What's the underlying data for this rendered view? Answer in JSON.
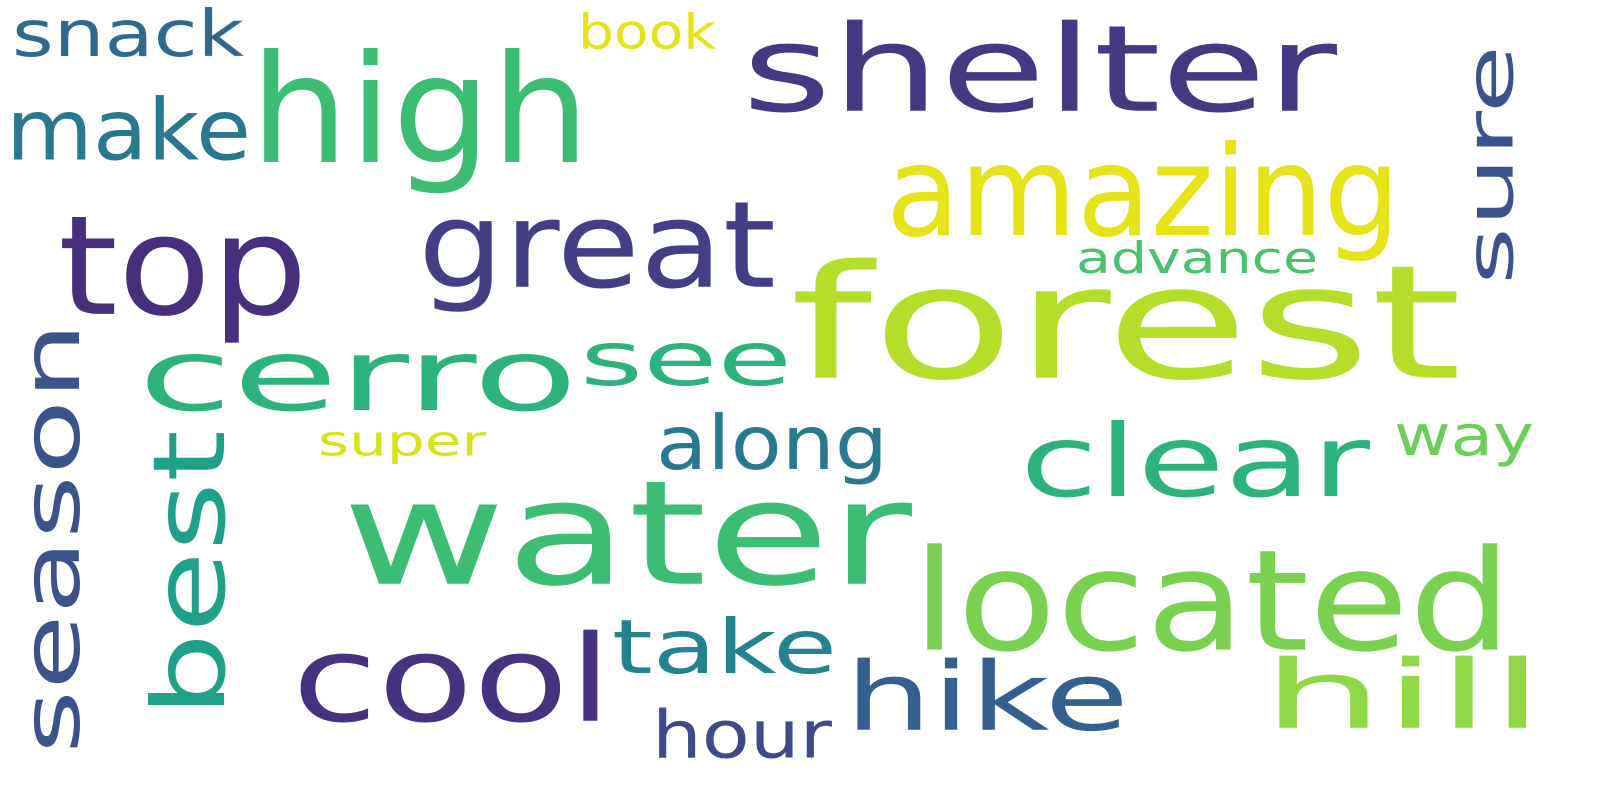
{
  "words": [
    {
      "text": "forest",
      "color": "#b5de2b"
    },
    {
      "text": "water",
      "color": "#3dbc74"
    },
    {
      "text": "shelter",
      "color": "#443983"
    },
    {
      "text": "high",
      "color": "#3dbc74"
    },
    {
      "text": "located",
      "color": "#7ad151"
    },
    {
      "text": "cerro",
      "color": "#2db27d"
    },
    {
      "text": "top",
      "color": "#472f7d"
    },
    {
      "text": "season",
      "color": "#3b528b"
    },
    {
      "text": "amazing",
      "color": "#e5e419"
    },
    {
      "text": "great",
      "color": "#433e85"
    },
    {
      "text": "cool",
      "color": "#46327e"
    },
    {
      "text": "hike",
      "color": "#355f8d"
    },
    {
      "text": "hill",
      "color": "#8fd744"
    },
    {
      "text": "see",
      "color": "#2db27d"
    },
    {
      "text": "clear",
      "color": "#2db27d"
    },
    {
      "text": "best",
      "color": "#1fa088"
    },
    {
      "text": "sure",
      "color": "#3b528b"
    },
    {
      "text": "take",
      "color": "#26828e"
    },
    {
      "text": "make",
      "color": "#2a788e"
    },
    {
      "text": "along",
      "color": "#2a788e"
    },
    {
      "text": "hour",
      "color": "#3e4a89"
    },
    {
      "text": "snack",
      "color": "#31688e"
    },
    {
      "text": "advance",
      "color": "#4ac16d"
    },
    {
      "text": "way",
      "color": "#6ccd5a"
    },
    {
      "text": "super",
      "color": "#d8e219"
    },
    {
      "text": "book",
      "color": "#e3e418"
    }
  ]
}
